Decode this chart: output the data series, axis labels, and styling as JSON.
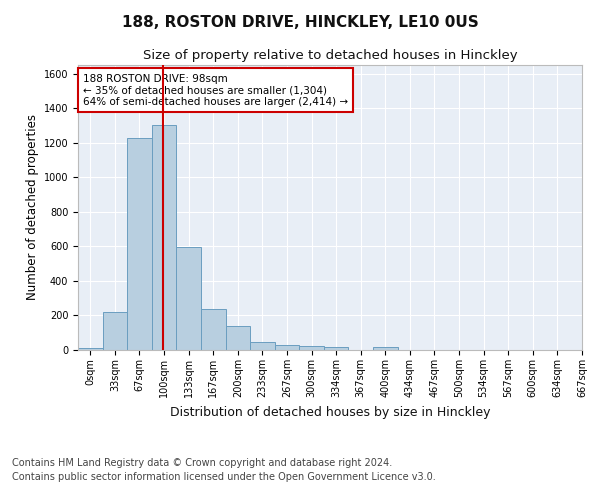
{
  "title1": "188, ROSTON DRIVE, HINCKLEY, LE10 0US",
  "title2": "Size of property relative to detached houses in Hinckley",
  "xlabel": "Distribution of detached houses by size in Hinckley",
  "ylabel": "Number of detached properties",
  "bar_values": [
    10,
    220,
    1225,
    1300,
    595,
    235,
    140,
    45,
    30,
    25,
    15,
    0,
    15,
    0,
    0,
    0,
    0,
    0,
    0,
    0
  ],
  "bin_labels": [
    "0sqm",
    "33sqm",
    "67sqm",
    "100sqm",
    "133sqm",
    "167sqm",
    "200sqm",
    "233sqm",
    "267sqm",
    "300sqm",
    "334sqm",
    "367sqm",
    "400sqm",
    "434sqm",
    "467sqm",
    "500sqm",
    "534sqm",
    "567sqm",
    "600sqm",
    "634sqm",
    "667sqm"
  ],
  "bar_color": "#b8cfe0",
  "bar_edge_color": "#6a9ec0",
  "ylim": [
    0,
    1650
  ],
  "yticks": [
    0,
    200,
    400,
    600,
    800,
    1000,
    1200,
    1400,
    1600
  ],
  "vline_x": 2.97,
  "annotation_text": "188 ROSTON DRIVE: 98sqm\n← 35% of detached houses are smaller (1,304)\n64% of semi-detached houses are larger (2,414) →",
  "annotation_box_color": "#ffffff",
  "annotation_box_edge_color": "#cc0000",
  "footer1": "Contains HM Land Registry data © Crown copyright and database right 2024.",
  "footer2": "Contains public sector information licensed under the Open Government Licence v3.0.",
  "bg_color": "#ffffff",
  "plot_bg_color": "#e8eef6",
  "grid_color": "#ffffff",
  "title1_fontsize": 11,
  "title2_fontsize": 9.5,
  "xlabel_fontsize": 9,
  "ylabel_fontsize": 8.5,
  "tick_fontsize": 7,
  "footer_fontsize": 7,
  "annot_fontsize": 7.5,
  "vline_color": "#cc0000"
}
